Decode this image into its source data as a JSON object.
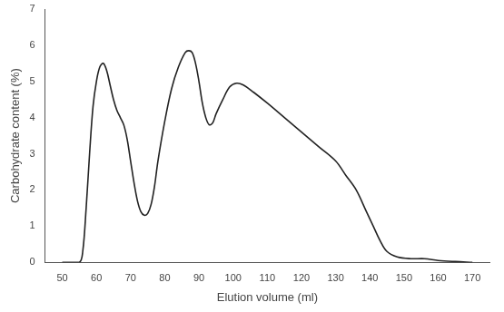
{
  "chart_data": {
    "type": "line",
    "x_label": "Elution volume (ml)",
    "y_label": "Carbohydrate content (%)",
    "x": [
      50,
      55,
      56,
      57,
      58,
      59,
      60,
      61,
      62,
      63,
      64,
      65,
      66,
      67,
      68,
      69,
      70,
      71,
      72,
      73,
      74,
      75,
      76,
      77,
      78,
      80,
      82,
      84,
      86,
      87,
      88,
      89,
      90,
      91,
      92,
      93,
      94,
      95,
      97,
      99,
      101,
      103,
      106,
      110,
      115,
      120,
      125,
      130,
      133,
      136,
      139,
      141,
      143,
      145,
      148,
      152,
      156,
      160,
      165,
      170
    ],
    "values": [
      0,
      0,
      0.3,
      1.5,
      3.0,
      4.3,
      5.0,
      5.4,
      5.5,
      5.3,
      4.9,
      4.5,
      4.2,
      4.0,
      3.8,
      3.4,
      2.8,
      2.2,
      1.7,
      1.4,
      1.3,
      1.35,
      1.6,
      2.1,
      2.8,
      3.9,
      4.8,
      5.4,
      5.8,
      5.85,
      5.8,
      5.5,
      5.0,
      4.4,
      4.0,
      3.8,
      3.85,
      4.1,
      4.5,
      4.85,
      4.95,
      4.9,
      4.7,
      4.4,
      4.0,
      3.6,
      3.2,
      2.8,
      2.4,
      2.0,
      1.4,
      1.0,
      0.6,
      0.3,
      0.15,
      0.1,
      0.1,
      0.05,
      0.02,
      0
    ],
    "color": "#222222",
    "xlim": [
      45,
      175
    ],
    "xticks": [
      50,
      60,
      70,
      80,
      90,
      100,
      110,
      120,
      130,
      140,
      150,
      160,
      170
    ],
    "ylim": [
      0,
      7
    ],
    "yticks": [
      0,
      1,
      2,
      3,
      4,
      5,
      6,
      7
    ],
    "grid": false
  }
}
